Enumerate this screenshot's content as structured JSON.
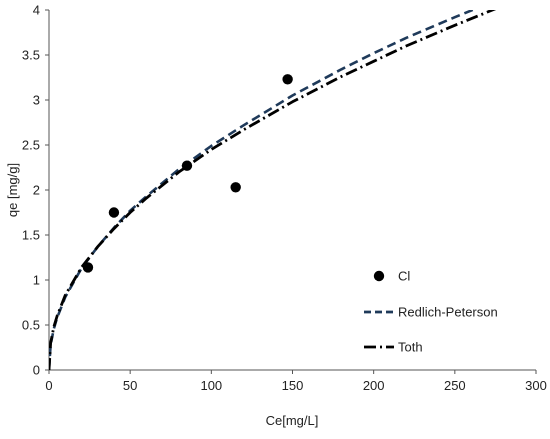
{
  "chart_data": {
    "type": "scatter",
    "title": "",
    "xlabel": "Ce[mg/L]",
    "ylabel": "qe [mg/g]",
    "xlim": [
      0,
      300
    ],
    "ylim": [
      0,
      4
    ],
    "xticks": [
      0,
      50,
      100,
      150,
      200,
      250,
      300
    ],
    "yticks": [
      0,
      0.5,
      1,
      1.5,
      2,
      2.5,
      3,
      3.5,
      4
    ],
    "grid": false,
    "legend_position": "right",
    "series": [
      {
        "name": "Cl",
        "kind": "points",
        "color": "#000000",
        "x": [
          24,
          40,
          85,
          115,
          147
        ],
        "y": [
          1.14,
          1.75,
          2.27,
          2.03,
          3.23
        ]
      },
      {
        "name": "Redlich-Peterson",
        "kind": "line",
        "style": "dashed",
        "color": "#1f3a5a",
        "x": [
          0,
          1,
          3,
          5,
          10,
          20,
          30,
          40,
          50,
          60,
          80,
          100,
          120,
          150,
          180,
          200,
          220,
          250,
          280,
          300
        ],
        "y": [
          0,
          0.28,
          0.46,
          0.58,
          0.81,
          1.13,
          1.37,
          1.58,
          1.77,
          1.93,
          2.23,
          2.49,
          2.72,
          3.05,
          3.34,
          3.52,
          3.69,
          3.92,
          4.14,
          4.28
        ]
      },
      {
        "name": "Toth",
        "kind": "line",
        "style": "dashdot",
        "color": "#000000",
        "x": [
          0,
          1,
          3,
          5,
          10,
          20,
          30,
          40,
          50,
          60,
          80,
          100,
          120,
          150,
          180,
          200,
          220,
          250,
          280,
          300
        ],
        "y": [
          0,
          0.3,
          0.48,
          0.6,
          0.83,
          1.14,
          1.37,
          1.57,
          1.75,
          1.91,
          2.2,
          2.45,
          2.67,
          2.98,
          3.26,
          3.43,
          3.6,
          3.83,
          4.05,
          4.18
        ]
      }
    ]
  }
}
